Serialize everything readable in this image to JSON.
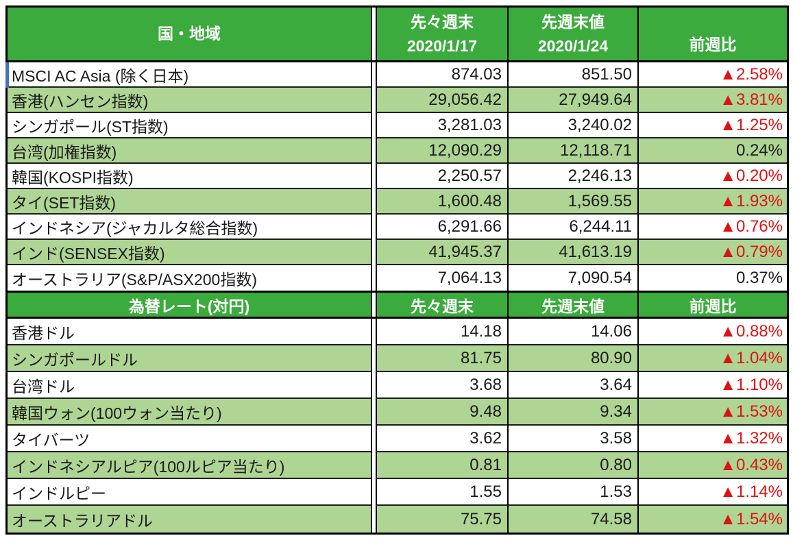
{
  "colors": {
    "header_green": "#3aab3c",
    "row_green": "#aed593",
    "negative_red": "#de1212",
    "text_dark": "#1a1a1a",
    "grid_black": "#000000",
    "selection_blue": "#4472c4"
  },
  "indices_table": {
    "header": {
      "country": "国・地域",
      "prev_label": "先々週末",
      "prev_date": "2020/1/17",
      "last_label": "先週末値",
      "last_date": "2020/1/24",
      "change": "前週比"
    },
    "rows": [
      {
        "name": "MSCI AC Asia (除く日本)",
        "prev": "874.03",
        "last": "851.50",
        "change": "▲2.58%",
        "negative": true
      },
      {
        "name": "香港(ハンセン指数)",
        "prev": "29,056.42",
        "last": "27,949.64",
        "change": "▲3.81%",
        "negative": true
      },
      {
        "name": "シンガポール(ST指数)",
        "prev": "3,281.03",
        "last": "3,240.02",
        "change": "▲1.25%",
        "negative": true
      },
      {
        "name": "台湾(加権指数)",
        "prev": "12,090.29",
        "last": "12,118.71",
        "change": "0.24%",
        "negative": false
      },
      {
        "name": "韓国(KOSPI指数)",
        "prev": "2,250.57",
        "last": "2,246.13",
        "change": "▲0.20%",
        "negative": true
      },
      {
        "name": "タイ(SET指数)",
        "prev": "1,600.48",
        "last": "1,569.55",
        "change": "▲1.93%",
        "negative": true
      },
      {
        "name": "インドネシア(ジャカルタ総合指数)",
        "prev": "6,291.66",
        "last": "6,244.11",
        "change": "▲0.76%",
        "negative": true
      },
      {
        "name": "インド(SENSEX指数)",
        "prev": "41,945.37",
        "last": "41,613.19",
        "change": "▲0.79%",
        "negative": true
      },
      {
        "name": "オーストラリア(S&P/ASX200指数)",
        "prev": "7,064.13",
        "last": "7,090.54",
        "change": "0.37%",
        "negative": false
      }
    ]
  },
  "fx_table": {
    "header": {
      "title": "為替レート(対円)",
      "prev_label": "先々週末",
      "last_label": "先週末値",
      "change": "前週比"
    },
    "rows": [
      {
        "name": "香港ドル",
        "prev": "14.18",
        "last": "14.06",
        "change": "▲0.88%",
        "negative": true
      },
      {
        "name": "シンガポールドル",
        "prev": "81.75",
        "last": "80.90",
        "change": "▲1.04%",
        "negative": true
      },
      {
        "name": "台湾ドル",
        "prev": "3.68",
        "last": "3.64",
        "change": "▲1.10%",
        "negative": true
      },
      {
        "name": "韓国ウォン(100ウォン当たり)",
        "prev": "9.48",
        "last": "9.34",
        "change": "▲1.53%",
        "negative": true
      },
      {
        "name": "タイバーツ",
        "prev": "3.62",
        "last": "3.58",
        "change": "▲1.32%",
        "negative": true
      },
      {
        "name": "インドネシアルピア(100ルピア当たり)",
        "prev": "0.81",
        "last": "0.80",
        "change": "▲0.43%",
        "negative": true
      },
      {
        "name": "インドルピー",
        "prev": "1.55",
        "last": "1.53",
        "change": "▲1.14%",
        "negative": true
      },
      {
        "name": "オーストラリアドル",
        "prev": "75.75",
        "last": "74.58",
        "change": "▲1.54%",
        "negative": true
      }
    ]
  }
}
